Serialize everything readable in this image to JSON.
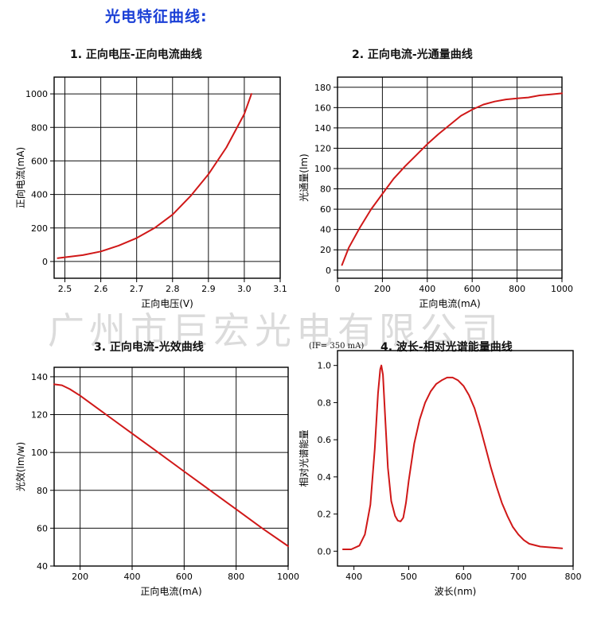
{
  "page": {
    "title": "光电特征曲线:",
    "title_color": "#1a3fd6",
    "watermark": "广州市巨宏光电有限公司"
  },
  "colors": {
    "curve": "#d01818",
    "grid": "#111111",
    "axis": "#000000"
  },
  "chart_data": [
    {
      "type": "line",
      "title": "1. 正向电压-正向电流曲线",
      "xlabel": "正向电压(V)",
      "ylabel": "正向电流(mA)",
      "xlim": [
        2.47,
        3.1
      ],
      "ylim": [
        -100,
        1100
      ],
      "xticks": [
        2.5,
        2.6,
        2.7,
        2.8,
        2.9,
        3.0,
        3.1
      ],
      "xtick_labels": [
        "2.5",
        "2.6",
        "2.7",
        "2.8",
        "2.9",
        "3.0",
        "3.1"
      ],
      "yticks": [
        0,
        200,
        400,
        600,
        800,
        1000
      ],
      "ytick_labels": [
        "0",
        "200",
        "400",
        "600",
        "800",
        "1000"
      ],
      "grid": true,
      "series": [
        {
          "x": [
            2.48,
            2.5,
            2.55,
            2.6,
            2.65,
            2.7,
            2.75,
            2.8,
            2.85,
            2.9,
            2.95,
            3.0,
            3.02
          ],
          "y": [
            20,
            25,
            38,
            60,
            95,
            140,
            200,
            280,
            390,
            520,
            680,
            880,
            1000
          ]
        }
      ]
    },
    {
      "type": "line",
      "title": "2. 正向电流-光通量曲线",
      "xlabel": "正向电流(mA)",
      "ylabel": "光通量(lm)",
      "xlim": [
        0,
        1000
      ],
      "ylim": [
        -8,
        190
      ],
      "xticks": [
        0,
        200,
        400,
        600,
        800,
        1000
      ],
      "xtick_labels": [
        "0",
        "200",
        "400",
        "600",
        "800",
        "1000"
      ],
      "yticks": [
        0,
        20,
        40,
        60,
        80,
        100,
        120,
        140,
        160,
        180
      ],
      "ytick_labels": [
        "0",
        "20",
        "40",
        "60",
        "80",
        "100",
        "120",
        "140",
        "160",
        "180"
      ],
      "grid": true,
      "series": [
        {
          "x": [
            20,
            50,
            100,
            150,
            200,
            250,
            300,
            350,
            400,
            450,
            500,
            550,
            600,
            650,
            700,
            750,
            800,
            850,
            900,
            950,
            1000
          ],
          "y": [
            5,
            22,
            42,
            60,
            75,
            90,
            102,
            113,
            124,
            134,
            143,
            152,
            158,
            163,
            166,
            168,
            169,
            170,
            172,
            173,
            174
          ]
        }
      ]
    },
    {
      "type": "line",
      "title": "3. 正向电流-光效曲线",
      "xlabel": "正向电流(mA)",
      "ylabel": "光效(lm/w)",
      "xlim": [
        100,
        1000
      ],
      "ylim": [
        40,
        145
      ],
      "xticks": [
        200,
        400,
        600,
        800,
        1000
      ],
      "xtick_labels": [
        "200",
        "400",
        "600",
        "800",
        "1000"
      ],
      "yticks": [
        40,
        60,
        80,
        100,
        120,
        140
      ],
      "ytick_labels": [
        "40",
        "60",
        "80",
        "100",
        "120",
        "140"
      ],
      "grid": true,
      "series": [
        {
          "x": [
            100,
            130,
            160,
            200,
            300,
            400,
            500,
            600,
            700,
            800,
            900,
            1000
          ],
          "y": [
            136,
            135.5,
            133.5,
            130,
            120,
            110,
            100,
            90,
            80,
            70,
            60,
            50.5
          ]
        }
      ]
    },
    {
      "type": "line",
      "title": "4. 波长-相对光谱能量曲线",
      "annotation": "(IF= 350 mA)",
      "xlabel": "波长(nm)",
      "ylabel": "相对光谱能量",
      "xlim": [
        370,
        800
      ],
      "ylim": [
        -0.08,
        1.08
      ],
      "xticks": [
        400,
        500,
        600,
        700,
        800
      ],
      "xtick_labels": [
        "400",
        "500",
        "600",
        "700",
        "800"
      ],
      "yticks": [
        0,
        0.2,
        0.4,
        0.6,
        0.8,
        1.0
      ],
      "ytick_labels": [
        "0.0",
        "0.2",
        "0.4",
        "0.6",
        "0.8",
        "1.0"
      ],
      "grid": false,
      "series": [
        {
          "x": [
            380,
            395,
            410,
            420,
            430,
            438,
            444,
            448,
            450,
            453,
            457,
            462,
            468,
            475,
            480,
            485,
            490,
            495,
            500,
            510,
            520,
            530,
            540,
            550,
            560,
            570,
            580,
            590,
            600,
            610,
            620,
            630,
            640,
            650,
            660,
            670,
            680,
            690,
            700,
            710,
            720,
            740,
            760,
            780
          ],
          "y": [
            0.01,
            0.01,
            0.03,
            0.09,
            0.25,
            0.55,
            0.85,
            0.98,
            1.0,
            0.95,
            0.72,
            0.45,
            0.27,
            0.19,
            0.165,
            0.16,
            0.18,
            0.26,
            0.38,
            0.58,
            0.71,
            0.8,
            0.86,
            0.9,
            0.92,
            0.935,
            0.935,
            0.92,
            0.89,
            0.84,
            0.77,
            0.67,
            0.56,
            0.45,
            0.35,
            0.26,
            0.19,
            0.13,
            0.09,
            0.06,
            0.04,
            0.025,
            0.02,
            0.015
          ]
        }
      ]
    }
  ]
}
